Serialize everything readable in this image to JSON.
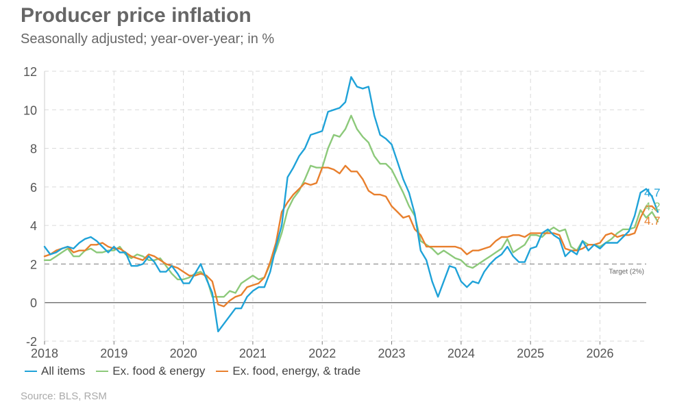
{
  "header": {
    "title": "Producer price inflation",
    "subtitle": "Seasonally adjusted; year-over-year; in %"
  },
  "source": "Source: BLS, RSM",
  "legend": [
    {
      "label": "All items",
      "color": "#1fa2d8"
    },
    {
      "label": "Ex. food & energy",
      "color": "#8cc97a"
    },
    {
      "label": "Ex. food, energy, & trade",
      "color": "#e87f2d"
    }
  ],
  "chart_data": {
    "type": "line",
    "title": "Producer price inflation",
    "subtitle": "Seasonally adjusted; year-over-year; in %",
    "xlabel": "",
    "ylabel": "",
    "xlim": [
      "2018-01",
      "2026-09"
    ],
    "ylim": [
      -2,
      12
    ],
    "yticks": [
      -2,
      0,
      2,
      4,
      6,
      8,
      10,
      12
    ],
    "xticks": [
      "2018",
      "2019",
      "2020",
      "2021",
      "2022",
      "2023",
      "2024",
      "2025",
      "2026"
    ],
    "grid": true,
    "legend_position": "bottom",
    "reference_line": {
      "value": 2,
      "label": "Target (2%)"
    },
    "start_month": "2018-01",
    "series": [
      {
        "name": "All items",
        "color": "#1fa2d8",
        "end_label": "4.7",
        "values": [
          2.9,
          2.5,
          2.6,
          2.8,
          2.9,
          2.8,
          3.1,
          3.3,
          3.4,
          3.2,
          2.9,
          2.6,
          2.9,
          2.6,
          2.6,
          1.9,
          1.9,
          2.0,
          2.4,
          2.1,
          1.6,
          1.6,
          1.9,
          1.5,
          1.0,
          1.0,
          1.5,
          2.0,
          1.2,
          0.5,
          -1.5,
          -1.1,
          -0.7,
          -0.3,
          -0.3,
          0.3,
          0.6,
          0.8,
          0.8,
          1.6,
          2.9,
          4.0,
          6.5,
          7.0,
          7.6,
          8.0,
          8.7,
          8.8,
          8.9,
          9.9,
          10.0,
          10.1,
          10.4,
          11.7,
          11.2,
          11.1,
          11.2,
          9.7,
          8.7,
          8.5,
          8.2,
          7.3,
          6.4,
          5.7,
          4.6,
          2.7,
          2.2,
          1.1,
          0.3,
          1.1,
          1.9,
          1.8,
          1.1,
          0.8,
          1.1,
          1.0,
          1.6,
          2.0,
          2.3,
          2.5,
          2.9,
          2.4,
          2.1,
          2.1,
          2.8,
          2.9,
          3.6,
          3.8,
          3.5,
          3.3,
          2.4,
          2.7,
          2.5,
          3.2,
          2.7,
          3.0,
          2.8,
          3.1,
          3.1,
          3.1,
          3.4,
          3.7,
          4.5,
          5.7,
          5.9,
          5.5,
          4.7
        ]
      },
      {
        "name": "Ex. food & energy",
        "color": "#8cc97a",
        "end_label": "4.2",
        "values": [
          2.2,
          2.2,
          2.4,
          2.6,
          2.8,
          2.4,
          2.4,
          2.7,
          2.8,
          2.6,
          2.6,
          2.7,
          2.7,
          2.9,
          2.5,
          2.3,
          2.5,
          2.4,
          2.2,
          2.2,
          2.3,
          1.9,
          1.5,
          1.2,
          1.2,
          1.3,
          1.5,
          1.6,
          1.3,
          0.3,
          0.3,
          0.3,
          0.6,
          0.5,
          1.0,
          1.2,
          1.4,
          1.2,
          1.3,
          2.0,
          2.7,
          3.6,
          4.8,
          5.4,
          5.8,
          6.4,
          7.1,
          7.0,
          7.0,
          8.0,
          8.7,
          8.6,
          9.0,
          9.7,
          9.0,
          8.6,
          8.3,
          7.6,
          7.2,
          7.2,
          6.9,
          6.3,
          5.7,
          5.0,
          4.5,
          3.2,
          3.0,
          2.8,
          2.5,
          2.7,
          2.5,
          2.3,
          2.2,
          1.9,
          1.8,
          2.0,
          2.2,
          2.4,
          2.6,
          2.8,
          3.3,
          2.6,
          2.8,
          3.0,
          3.5,
          3.5,
          3.4,
          3.7,
          3.9,
          3.7,
          3.8,
          2.9,
          2.7,
          3.2,
          3.0,
          3.0,
          2.9,
          3.1,
          3.3,
          3.6,
          3.8,
          3.8,
          3.9,
          4.8,
          4.4,
          4.7,
          4.2
        ]
      },
      {
        "name": "Ex. food, energy, & trade",
        "color": "#e87f2d",
        "end_label": "4.7",
        "values": [
          2.4,
          2.5,
          2.7,
          2.8,
          2.9,
          2.6,
          2.7,
          2.7,
          3.0,
          3.0,
          3.1,
          2.9,
          2.8,
          2.8,
          2.6,
          2.4,
          2.3,
          2.2,
          2.5,
          2.4,
          2.2,
          2.0,
          1.9,
          1.8,
          1.6,
          1.4,
          1.4,
          1.5,
          1.4,
          1.1,
          -0.1,
          -0.2,
          0.1,
          0.3,
          0.4,
          0.8,
          0.9,
          1.0,
          1.3,
          2.1,
          3.1,
          4.7,
          5.2,
          5.6,
          5.9,
          6.2,
          6.1,
          6.2,
          7.0,
          7.0,
          6.9,
          6.7,
          7.1,
          6.8,
          6.8,
          6.4,
          5.8,
          5.6,
          5.6,
          5.5,
          5.0,
          4.7,
          4.4,
          4.5,
          3.8,
          3.5,
          2.9,
          2.9,
          2.9,
          2.9,
          2.9,
          2.9,
          2.8,
          2.5,
          2.7,
          2.7,
          2.8,
          2.9,
          3.2,
          3.4,
          3.4,
          3.5,
          3.5,
          3.4,
          3.6,
          3.6,
          3.6,
          3.6,
          3.6,
          3.5,
          2.8,
          2.7,
          2.7,
          2.8,
          3.0,
          3.0,
          3.1,
          3.5,
          3.6,
          3.4,
          3.5,
          3.5,
          3.6,
          4.4,
          5.0,
          5.0,
          4.7
        ]
      }
    ]
  }
}
